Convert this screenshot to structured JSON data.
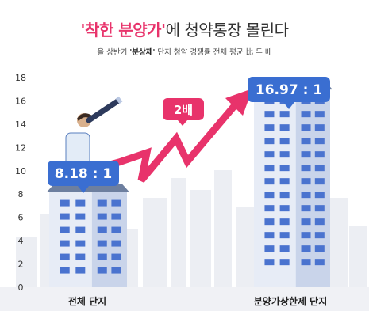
{
  "header": {
    "title_quote_open": "'",
    "title_highlight": "착한 분양가",
    "title_quote_close": "'",
    "title_rest": "에 청약통장 몰린다",
    "subtitle_before": "올 상반기 ",
    "subtitle_bold": "'분상제'",
    "subtitle_after": " 단지 청약 경쟁률 전체 평균 比 두 배"
  },
  "badge": {
    "label": "2배"
  },
  "colors": {
    "accent": "#e8336b",
    "label_box": "#3a6ed1",
    "building_facade": "#e7ecf6",
    "building_side": "#c9d4ea",
    "window": "#4a73cf",
    "city_bg": "#eceef3"
  },
  "chart_data": {
    "type": "bar",
    "categories": [
      "전체 단지",
      "분양가상한제 단지"
    ],
    "values": [
      8.18,
      16.97
    ],
    "value_labels": [
      "8.18 : 1",
      "16.97 : 1"
    ],
    "ylim": [
      0,
      18
    ],
    "yticks": [
      0,
      2,
      4,
      6,
      8,
      10,
      12,
      14,
      16,
      18
    ],
    "grid": false,
    "legend": "none"
  }
}
